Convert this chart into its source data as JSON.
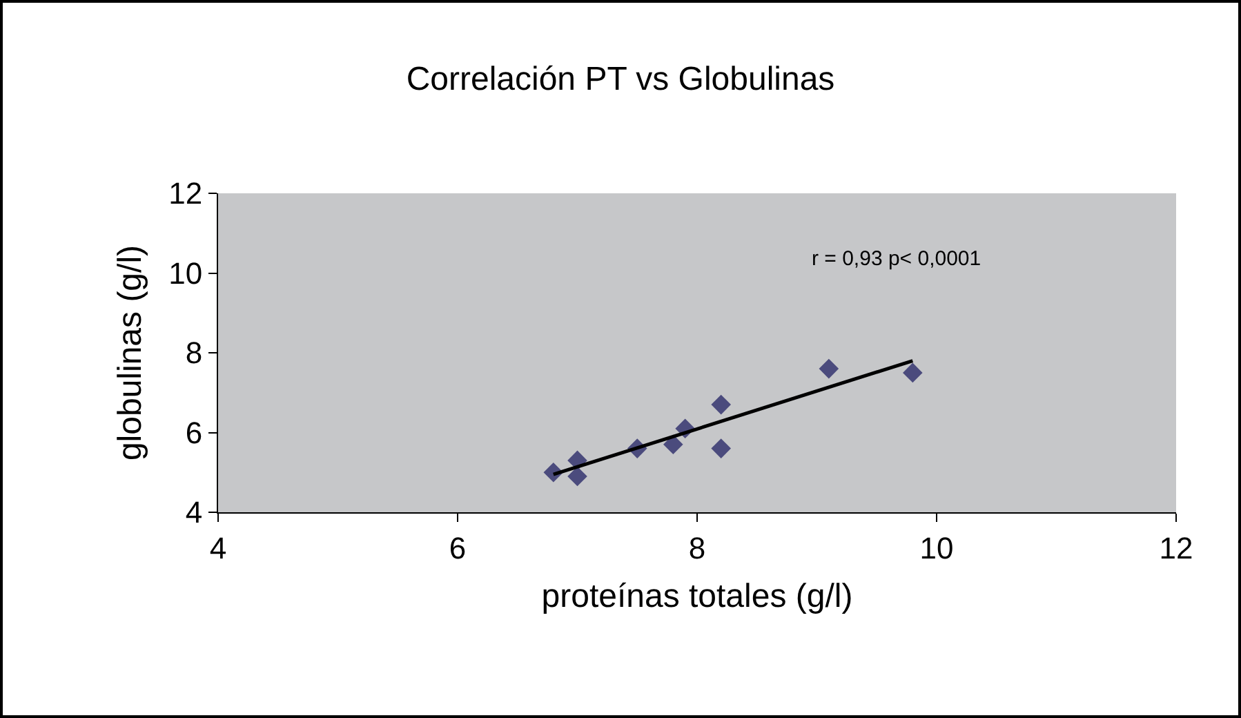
{
  "chart_data": {
    "type": "scatter",
    "title": "Correlación PT vs Globulinas",
    "xlabel": "proteínas totales (g/l)",
    "ylabel": "globulinas (g/l)",
    "series": [
      {
        "color": "#4b4b7d",
        "marker": "diamond",
        "x": [
          6.8,
          7.0,
          7.0,
          7.5,
          7.8,
          7.9,
          8.2,
          8.2,
          9.1,
          9.8
        ],
        "values": [
          5.0,
          5.3,
          4.9,
          5.6,
          5.7,
          6.1,
          6.7,
          5.6,
          7.6,
          7.5
        ]
      },
      {
        "type": "line",
        "color": "#000000",
        "marker": "none",
        "x": [
          6.8,
          9.8
        ],
        "values": [
          4.95,
          7.8
        ]
      }
    ],
    "annotations": [
      "r = 0,93 p< 0,0001"
    ],
    "xlim": [
      4,
      12
    ],
    "xticks": [
      4,
      6,
      8,
      10,
      12
    ],
    "ylim": [
      4,
      12
    ],
    "yticks": [
      4,
      6,
      8,
      10,
      12
    ],
    "grid": false
  }
}
